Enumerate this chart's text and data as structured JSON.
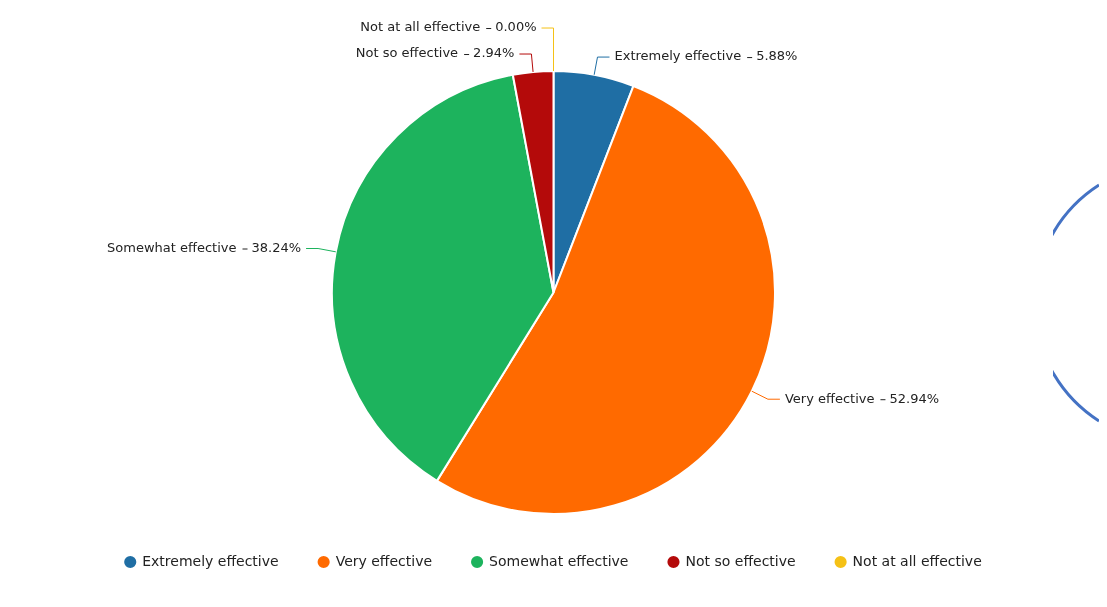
{
  "chart_data": {
    "type": "pie",
    "categories": [
      "Extremely effective",
      "Very effective",
      "Somewhat effective",
      "Not so effective",
      "Not at all effective"
    ],
    "values": [
      5.88,
      52.94,
      38.24,
      2.94,
      0
    ],
    "value_labels": [
      "5.88%",
      "52.94%",
      "38.24%",
      "2.94%",
      "0.00%"
    ],
    "colors": [
      "#1f6ea4",
      "#ff6a00",
      "#1db35d",
      "#b40a0a",
      "#f5c116"
    ],
    "legend": "bottom"
  }
}
